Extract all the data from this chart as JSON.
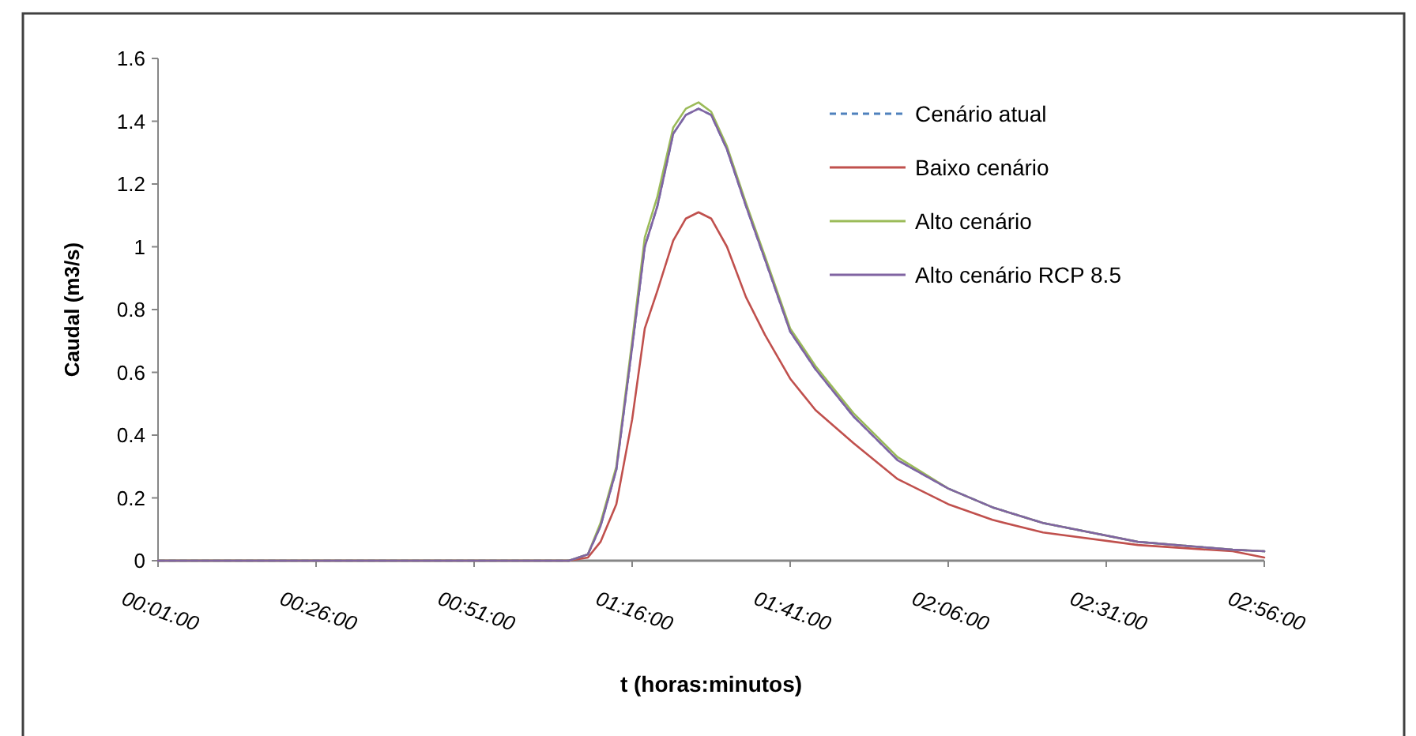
{
  "chart_data": {
    "type": "line",
    "xlabel": "t (horas:minutos)",
    "ylabel": "Caudal (m3/s)",
    "x": [
      0.0167,
      1.1,
      1.15,
      1.1833,
      1.225,
      1.2667,
      1.3,
      1.3333,
      1.375,
      1.4083,
      1.4417,
      1.475,
      1.5167,
      1.5667,
      1.6167,
      1.6833,
      1.75,
      1.85,
      1.9667,
      2.1,
      2.2167,
      2.35,
      2.6,
      2.85,
      2.9333
    ],
    "series": [
      {
        "name": "Cenário atual",
        "color": "#4f81bd",
        "line_style": "dashed",
        "values": [
          0,
          0,
          0.02,
          0.11,
          0.29,
          0.68,
          1.0,
          1.13,
          1.36,
          1.42,
          1.44,
          1.42,
          1.31,
          1.13,
          0.96,
          0.73,
          0.61,
          0.46,
          0.32,
          0.23,
          0.17,
          0.12,
          0.06,
          0.035,
          0.03
        ]
      },
      {
        "name": "Baixo cenário",
        "color": "#c0504d",
        "line_style": "solid",
        "values": [
          0,
          0,
          0.01,
          0.06,
          0.18,
          0.45,
          0.74,
          0.86,
          1.02,
          1.09,
          1.11,
          1.09,
          1.0,
          0.84,
          0.72,
          0.58,
          0.48,
          0.375,
          0.26,
          0.18,
          0.13,
          0.09,
          0.05,
          0.03,
          0.01
        ]
      },
      {
        "name": "Alto cenário",
        "color": "#9bbb59",
        "line_style": "solid",
        "values": [
          0,
          0,
          0.02,
          0.12,
          0.3,
          0.7,
          1.03,
          1.16,
          1.38,
          1.44,
          1.46,
          1.43,
          1.32,
          1.14,
          0.97,
          0.74,
          0.62,
          0.47,
          0.33,
          0.23,
          0.17,
          0.12,
          0.06,
          0.035,
          0.03
        ]
      },
      {
        "name": "Alto cenário RCP 8.5",
        "color": "#8064a2",
        "line_style": "solid",
        "values": [
          0,
          0,
          0.02,
          0.11,
          0.29,
          0.68,
          1.0,
          1.13,
          1.36,
          1.42,
          1.44,
          1.42,
          1.31,
          1.13,
          0.96,
          0.73,
          0.61,
          0.46,
          0.32,
          0.23,
          0.17,
          0.12,
          0.06,
          0.035,
          0.03
        ]
      }
    ],
    "xlim": [
      0.0167,
      2.9333
    ],
    "xticks": [
      {
        "value": 0.0167,
        "label": "00:01:00"
      },
      {
        "value": 0.4333,
        "label": "00:26:00"
      },
      {
        "value": 0.85,
        "label": "00:51:00"
      },
      {
        "value": 1.2667,
        "label": "01:16:00"
      },
      {
        "value": 1.6833,
        "label": "01:41:00"
      },
      {
        "value": 2.1,
        "label": "02:06:00"
      },
      {
        "value": 2.5167,
        "label": "02:31:00"
      },
      {
        "value": 2.9333,
        "label": "02:56:00"
      }
    ],
    "ylim": [
      0,
      1.6
    ],
    "yticks": [
      0,
      0.2,
      0.4,
      0.6,
      0.8,
      1,
      1.2,
      1.4,
      1.6
    ],
    "grid": false,
    "legend": "top right",
    "marker": "none"
  }
}
